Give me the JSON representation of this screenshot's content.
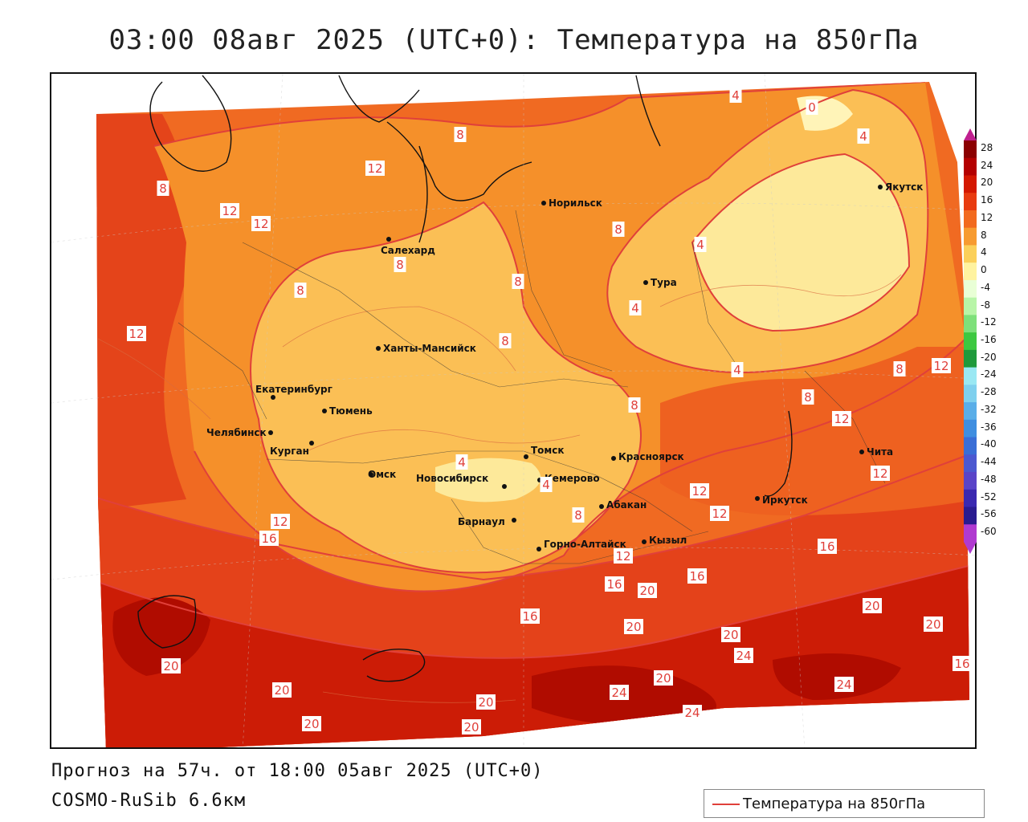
{
  "title": "03:00 08авг 2025 (UTC+0): Температура на 850гПа",
  "footer": {
    "forecast": "Прогноз на 57ч. от 18:00 05авг 2025 (UTC+0)",
    "model": "COSMO-RuSib 6.6км"
  },
  "legend": {
    "label": "Температура на 850гПа",
    "color": "#e0403a"
  },
  "colorbar": {
    "labels": [
      "28",
      "24",
      "20",
      "16",
      "12",
      "8",
      "4",
      "0",
      "-4",
      "-8",
      "-12",
      "-16",
      "-20",
      "-24",
      "-28",
      "-32",
      "-36",
      "-40",
      "-44",
      "-48",
      "-52",
      "-56",
      "-60"
    ],
    "colors": [
      "#8b0000",
      "#b40000",
      "#d41800",
      "#e83b10",
      "#f26a1e",
      "#f79b30",
      "#fbd05a",
      "#fff3a0",
      "#e9ffd6",
      "#b8f5a8",
      "#7ee07a",
      "#3dc840",
      "#1f9a3c",
      "#9ae8f3",
      "#7fd0ee",
      "#5aaee8",
      "#3f8ee0",
      "#3a6ed6",
      "#4c58d0",
      "#5a44c8",
      "#3a28b0",
      "#2a1b90",
      "#b03ad0"
    ]
  },
  "cities": [
    {
      "name": "Норильск"
    },
    {
      "name": "Якутск"
    },
    {
      "name": "Салехард"
    },
    {
      "name": "Тура"
    },
    {
      "name": "Ханты-Мансийск"
    },
    {
      "name": "Екатеринбург"
    },
    {
      "name": "Тюмень"
    },
    {
      "name": "Челябинск"
    },
    {
      "name": "Курган"
    },
    {
      "name": "Омск"
    },
    {
      "name": "Томск"
    },
    {
      "name": "Новосибирск"
    },
    {
      "name": "Кемерово"
    },
    {
      "name": "Красноярск"
    },
    {
      "name": "Барнаул"
    },
    {
      "name": "Абакан"
    },
    {
      "name": "Иркутск"
    },
    {
      "name": "Чита"
    },
    {
      "name": "Горно-Алтайск"
    },
    {
      "name": "Кызыл"
    }
  ],
  "isotherm_labels": [
    {
      "value": "4"
    },
    {
      "value": "0"
    },
    {
      "value": "4"
    },
    {
      "value": "8"
    },
    {
      "value": "8"
    },
    {
      "value": "12"
    },
    {
      "value": "12"
    },
    {
      "value": "12"
    },
    {
      "value": "8"
    },
    {
      "value": "8"
    },
    {
      "value": "8"
    },
    {
      "value": "4"
    },
    {
      "value": "8"
    },
    {
      "value": "4"
    },
    {
      "value": "8"
    },
    {
      "value": "12"
    },
    {
      "value": "4"
    },
    {
      "value": "8"
    },
    {
      "value": "8"
    },
    {
      "value": "8"
    },
    {
      "value": "12"
    },
    {
      "value": "12"
    },
    {
      "value": "12"
    },
    {
      "value": "4"
    },
    {
      "value": "4"
    },
    {
      "value": "12"
    },
    {
      "value": "12"
    },
    {
      "value": "16"
    },
    {
      "value": "8"
    },
    {
      "value": "12"
    },
    {
      "value": "16"
    },
    {
      "value": "12"
    },
    {
      "value": "16"
    },
    {
      "value": "16"
    },
    {
      "value": "20"
    },
    {
      "value": "20"
    },
    {
      "value": "20"
    },
    {
      "value": "20"
    },
    {
      "value": "24"
    },
    {
      "value": "20"
    },
    {
      "value": "24"
    },
    {
      "value": "20"
    },
    {
      "value": "24"
    },
    {
      "value": "24"
    },
    {
      "value": "20"
    },
    {
      "value": "20"
    },
    {
      "value": "20"
    },
    {
      "value": "20"
    },
    {
      "value": "16"
    },
    {
      "value": "16"
    },
    {
      "value": "20"
    }
  ]
}
